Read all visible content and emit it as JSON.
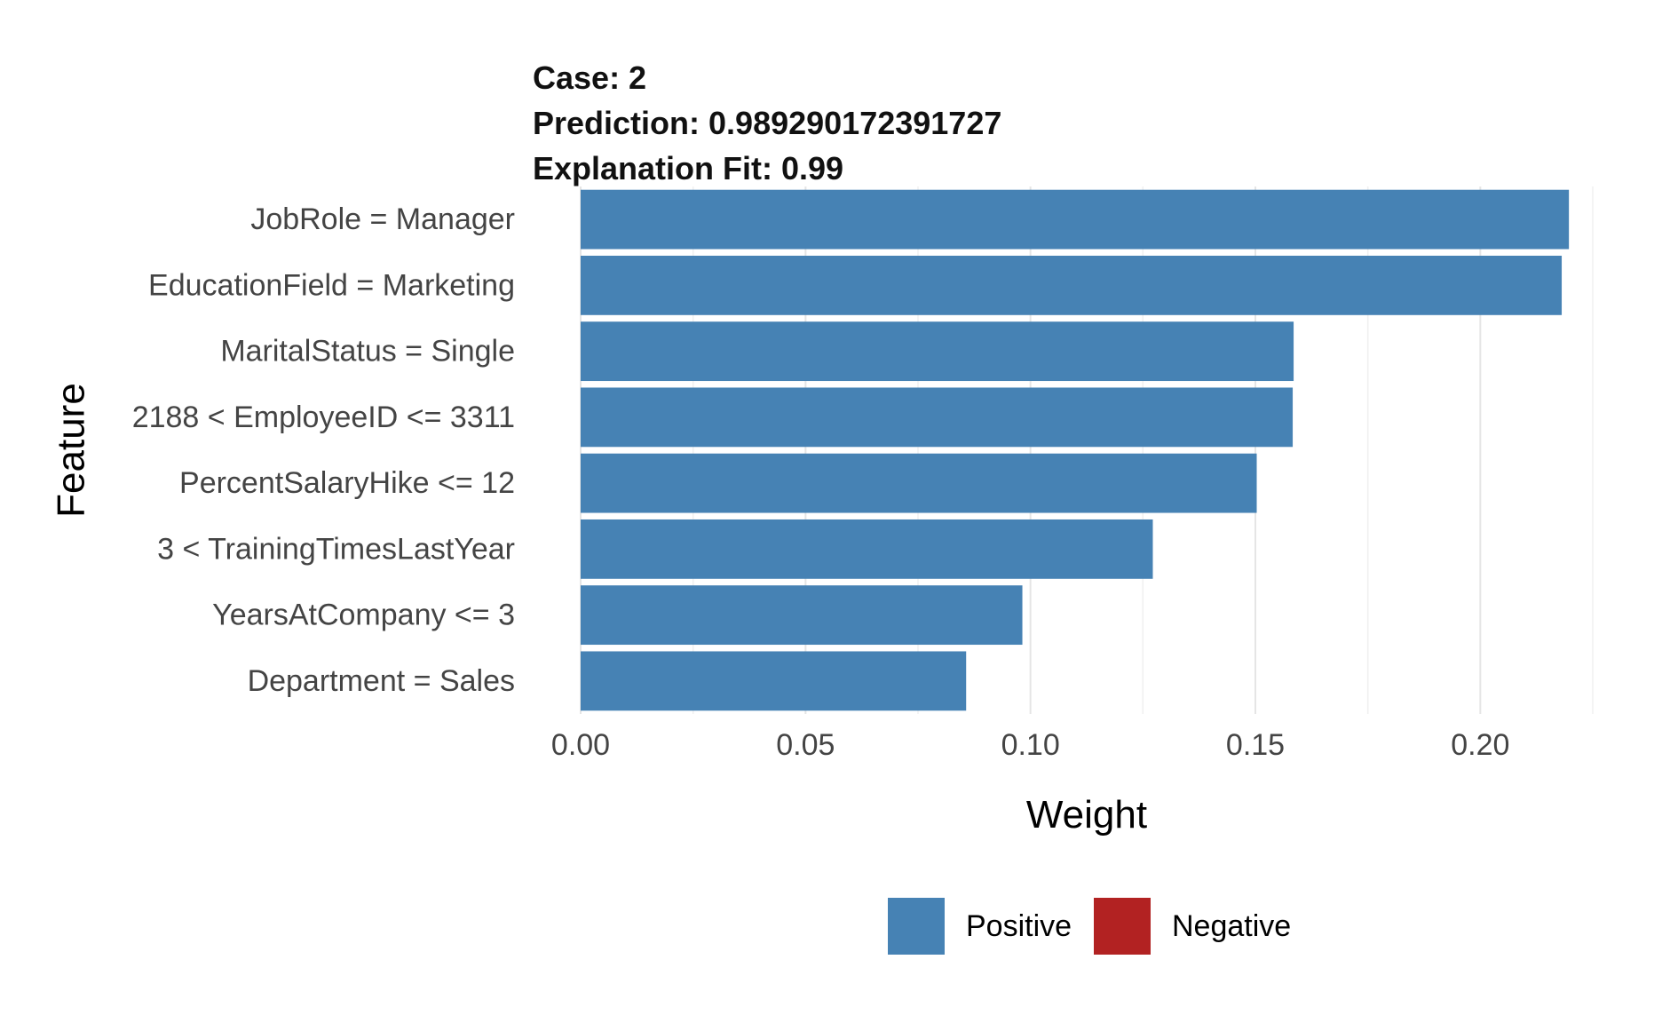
{
  "chart_data": {
    "type": "bar",
    "orientation": "horizontal",
    "title_lines": [
      "Case: 2",
      "Prediction: 0.989290172391727",
      "Explanation Fit: 0.99"
    ],
    "xlabel": "Weight",
    "ylabel": "Feature",
    "xlim": [
      0,
      0.225
    ],
    "x_ticks": [
      {
        "value": 0.0,
        "label": "0.00"
      },
      {
        "value": 0.05,
        "label": "0.05"
      },
      {
        "value": 0.1,
        "label": "0.10"
      },
      {
        "value": 0.15,
        "label": "0.15"
      },
      {
        "value": 0.2,
        "label": "0.20"
      }
    ],
    "x_minor_ticks": [
      0.025,
      0.075,
      0.125,
      0.175,
      0.225
    ],
    "categories": [
      "JobRole = Manager",
      "EducationField = Marketing",
      "MaritalStatus = Single",
      "2188 < EmployeeID <= 3311",
      "PercentSalaryHike <= 12",
      "3 < TrainingTimesLastYear",
      "YearsAtCompany <= 3",
      "Department = Sales"
    ],
    "series": [
      {
        "values": [
          0.2197,
          0.2181,
          0.1585,
          0.1583,
          0.1503,
          0.1272,
          0.0982,
          0.0857
        ],
        "signs": [
          "Positive",
          "Positive",
          "Positive",
          "Positive",
          "Positive",
          "Positive",
          "Positive",
          "Positive"
        ]
      }
    ],
    "grid": true,
    "legend": {
      "placement": "bottom",
      "items": [
        {
          "label": "Positive",
          "color": "#4682b4"
        },
        {
          "label": "Negative",
          "color": "#b22222"
        }
      ]
    },
    "colors": {
      "Positive": "#4682b4",
      "Negative": "#b22222"
    }
  }
}
